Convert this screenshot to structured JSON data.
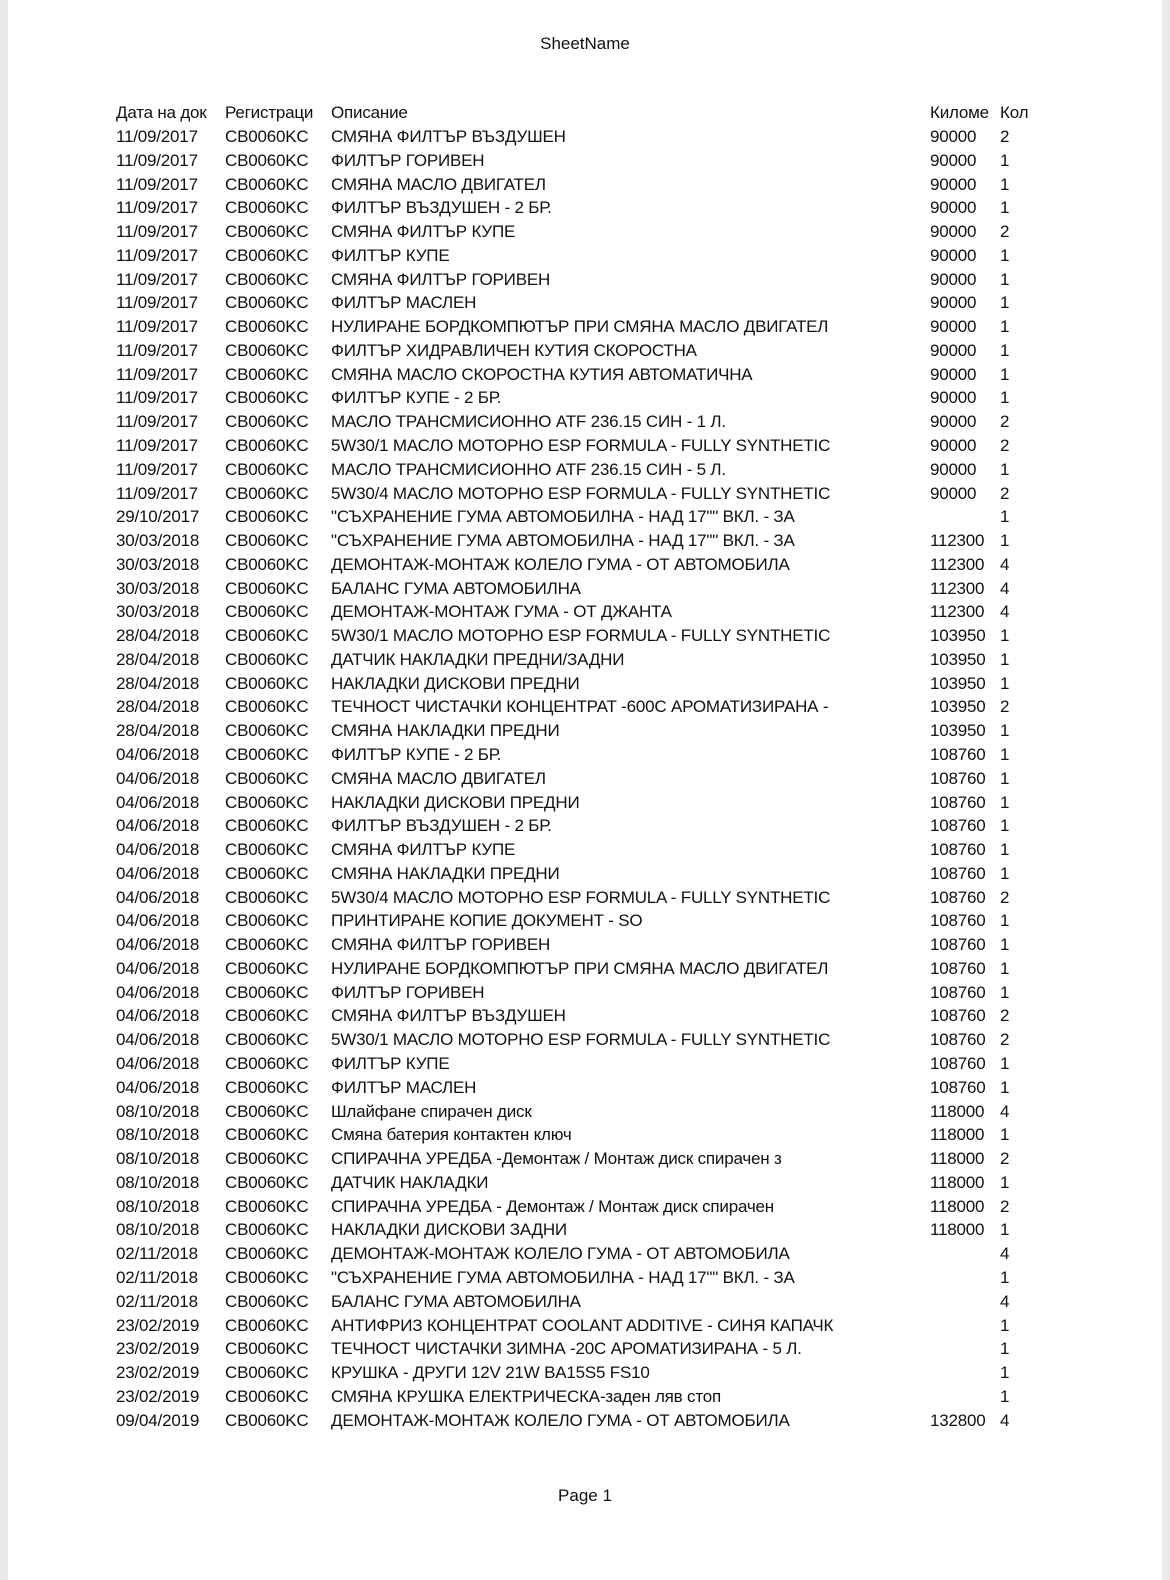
{
  "sheet_title": "SheetName",
  "footer": "Page 1",
  "columns": [
    "Дата на док",
    "Регистраци",
    "Описание",
    "Киломе",
    "Кол"
  ],
  "rows": [
    [
      "11/09/2017",
      "CB0060KC",
      "СМЯНА ФИЛТЪР ВЪЗДУШЕН",
      "90000",
      "2"
    ],
    [
      "11/09/2017",
      "CB0060KC",
      "ФИЛТЪР ГОРИВЕН",
      "90000",
      "1"
    ],
    [
      "11/09/2017",
      "CB0060KC",
      "СМЯНА МАСЛО ДВИГАТЕЛ",
      "90000",
      "1"
    ],
    [
      "11/09/2017",
      "CB0060KC",
      "ФИЛТЪР ВЪЗДУШЕН - 2 БР.",
      "90000",
      "1"
    ],
    [
      "11/09/2017",
      "CB0060KC",
      "СМЯНА ФИЛТЪР КУПЕ",
      "90000",
      "2"
    ],
    [
      "11/09/2017",
      "CB0060KC",
      "ФИЛТЪР КУПЕ",
      "90000",
      "1"
    ],
    [
      "11/09/2017",
      "CB0060KC",
      "СМЯНА ФИЛТЪР ГОРИВЕН",
      "90000",
      "1"
    ],
    [
      "11/09/2017",
      "CB0060KC",
      "ФИЛТЪР МАСЛЕН",
      "90000",
      "1"
    ],
    [
      "11/09/2017",
      "CB0060KC",
      "НУЛИРАНЕ БОРДКОМПЮТЪР ПРИ СМЯНА МАСЛО ДВИГАТЕЛ",
      "90000",
      "1"
    ],
    [
      "11/09/2017",
      "CB0060KC",
      "ФИЛТЪР ХИДРАВЛИЧЕН КУТИЯ СКОРОСТНА",
      "90000",
      "1"
    ],
    [
      "11/09/2017",
      "CB0060KC",
      "СМЯНА МАСЛО СКОРОСТНА КУТИЯ АВТОМАТИЧНА",
      "90000",
      "1"
    ],
    [
      "11/09/2017",
      "CB0060KC",
      "ФИЛТЪР КУПЕ - 2 БР.",
      "90000",
      "1"
    ],
    [
      "11/09/2017",
      "CB0060KC",
      "МАСЛО ТРАНСМИСИОННО ATF 236.15 СИН - 1 Л.",
      "90000",
      "2"
    ],
    [
      "11/09/2017",
      "CB0060KC",
      "5W30/1 МАСЛО МОТОРНО ESP FORMULA - FULLY SYNTHETIC",
      "90000",
      "2"
    ],
    [
      "11/09/2017",
      "CB0060KC",
      "МАСЛО ТРАНСМИСИОННО ATF 236.15 СИН - 5 Л.",
      "90000",
      "1"
    ],
    [
      "11/09/2017",
      "CB0060KC",
      "5W30/4 МАСЛО МОТОРНО ESP FORMULA - FULLY SYNTHETIC",
      "90000",
      "2"
    ],
    [
      "29/10/2017",
      "CB0060KC",
      "\"СЪХРАНЕНИЕ ГУМА АВТОМОБИЛНА - НАД 17\"\" ВКЛ. - ЗА",
      "",
      "1"
    ],
    [
      "30/03/2018",
      "CB0060KC",
      "\"СЪХРАНЕНИЕ ГУМА АВТОМОБИЛНА - НАД 17\"\" ВКЛ. - ЗА",
      "112300",
      "1"
    ],
    [
      "30/03/2018",
      "CB0060KC",
      "ДЕМОНТАЖ-МОНТАЖ КОЛЕЛО ГУМА - ОТ АВТОМОБИЛА",
      "112300",
      "4"
    ],
    [
      "30/03/2018",
      "CB0060KC",
      "БАЛАНС ГУМА АВТОМОБИЛНА",
      "112300",
      "4"
    ],
    [
      "30/03/2018",
      "CB0060KC",
      "ДЕМОНТАЖ-МОНТАЖ ГУМА - ОТ ДЖАНТА",
      "112300",
      "4"
    ],
    [
      "28/04/2018",
      "CB0060KC",
      "5W30/1 МАСЛО МОТОРНО ESP FORMULA - FULLY SYNTHETIC",
      "103950",
      "1"
    ],
    [
      "28/04/2018",
      "CB0060KC",
      "ДАТЧИК НАКЛАДКИ ПРЕДНИ/ЗАДНИ",
      "103950",
      "1"
    ],
    [
      "28/04/2018",
      "CB0060KC",
      "НАКЛАДКИ ДИСКОВИ ПРЕДНИ",
      "103950",
      "1"
    ],
    [
      "28/04/2018",
      "CB0060KC",
      "ТЕЧНОСТ ЧИСТАЧКИ КОНЦЕНТРАТ -600C АРОМАТИЗИРАНА -",
      "103950",
      "2"
    ],
    [
      "28/04/2018",
      "CB0060KC",
      "СМЯНА НАКЛАДКИ ПРЕДНИ",
      "103950",
      "1"
    ],
    [
      "04/06/2018",
      "CB0060KC",
      "ФИЛТЪР КУПЕ - 2 БР.",
      "108760",
      "1"
    ],
    [
      "04/06/2018",
      "CB0060KC",
      "СМЯНА МАСЛО ДВИГАТЕЛ",
      "108760",
      "1"
    ],
    [
      "04/06/2018",
      "CB0060KC",
      "НАКЛАДКИ ДИСКОВИ ПРЕДНИ",
      "108760",
      "1"
    ],
    [
      "04/06/2018",
      "CB0060KC",
      "ФИЛТЪР ВЪЗДУШЕН - 2 БР.",
      "108760",
      "1"
    ],
    [
      "04/06/2018",
      "CB0060KC",
      "СМЯНА ФИЛТЪР КУПЕ",
      "108760",
      "1"
    ],
    [
      "04/06/2018",
      "CB0060KC",
      "СМЯНА НАКЛАДКИ ПРЕДНИ",
      "108760",
      "1"
    ],
    [
      "04/06/2018",
      "CB0060KC",
      "5W30/4 МАСЛО МОТОРНО ESP FORMULA - FULLY SYNTHETIC",
      "108760",
      "2"
    ],
    [
      "04/06/2018",
      "CB0060KC",
      "ПРИНТИРАНЕ КОПИЕ ДОКУМЕНТ - SO",
      "108760",
      "1"
    ],
    [
      "04/06/2018",
      "CB0060KC",
      "СМЯНА ФИЛТЪР ГОРИВЕН",
      "108760",
      "1"
    ],
    [
      "04/06/2018",
      "CB0060KC",
      "НУЛИРАНЕ БОРДКОМПЮТЪР ПРИ СМЯНА МАСЛО ДВИГАТЕЛ",
      "108760",
      "1"
    ],
    [
      "04/06/2018",
      "CB0060KC",
      "ФИЛТЪР ГОРИВЕН",
      "108760",
      "1"
    ],
    [
      "04/06/2018",
      "CB0060KC",
      "СМЯНА ФИЛТЪР ВЪЗДУШЕН",
      "108760",
      "2"
    ],
    [
      "04/06/2018",
      "CB0060KC",
      "5W30/1 МАСЛО МОТОРНО ESP FORMULA - FULLY SYNTHETIC",
      "108760",
      "2"
    ],
    [
      "04/06/2018",
      "CB0060KC",
      "ФИЛТЪР КУПЕ",
      "108760",
      "1"
    ],
    [
      "04/06/2018",
      "CB0060KC",
      "ФИЛТЪР МАСЛЕН",
      "108760",
      "1"
    ],
    [
      "08/10/2018",
      "CB0060KC",
      "Шлайфане спирачен диск",
      "118000",
      "4"
    ],
    [
      "08/10/2018",
      "CB0060KC",
      "Смяна батерия контактен ключ",
      "118000",
      "1"
    ],
    [
      "08/10/2018",
      "CB0060KC",
      "СПИРАЧНА УРЕДБА -Демонтаж / Монтаж диск спирачен з",
      "118000",
      "2"
    ],
    [
      "08/10/2018",
      "CB0060KC",
      "ДАТЧИК НАКЛАДКИ",
      "118000",
      "1"
    ],
    [
      "08/10/2018",
      "CB0060KC",
      "СПИРАЧНА УРЕДБА - Демонтаж / Монтаж диск спирачен",
      "118000",
      "2"
    ],
    [
      "08/10/2018",
      "CB0060KC",
      "НАКЛАДКИ ДИСКОВИ ЗАДНИ",
      "118000",
      "1"
    ],
    [
      "02/11/2018",
      "CB0060KC",
      "ДЕМОНТАЖ-МОНТАЖ КОЛЕЛО ГУМА - ОТ АВТОМОБИЛА",
      "",
      "4"
    ],
    [
      "02/11/2018",
      "CB0060KC",
      "\"СЪХРАНЕНИЕ ГУМА АВТОМОБИЛНА - НАД 17\"\" ВКЛ. - ЗА",
      "",
      "1"
    ],
    [
      "02/11/2018",
      "CB0060KC",
      "БАЛАНС ГУМА АВТОМОБИЛНА",
      "",
      "4"
    ],
    [
      "23/02/2019",
      "CB0060KC",
      "АНТИФРИЗ КОНЦЕНТРАТ COOLANT ADDITIVE - СИНЯ КАПАЧК",
      "",
      "1"
    ],
    [
      "23/02/2019",
      "CB0060KC",
      "ТЕЧНОСТ ЧИСТАЧКИ ЗИМНА -20C АРОМАТИЗИРАНА - 5 Л.",
      "",
      "1"
    ],
    [
      "23/02/2019",
      "CB0060KC",
      "КРУШКА - ДРУГИ 12V 21W BA15S5 FS10",
      "",
      "1"
    ],
    [
      "23/02/2019",
      "CB0060KC",
      "СМЯНА КРУШКА ЕЛЕКТРИЧЕСКА-заден ляв стоп",
      "",
      "1"
    ],
    [
      "09/04/2019",
      "CB0060KC",
      "ДЕМОНТАЖ-МОНТАЖ КОЛЕЛО ГУМА - ОТ АВТОМОБИЛА",
      "132800",
      "4"
    ]
  ]
}
